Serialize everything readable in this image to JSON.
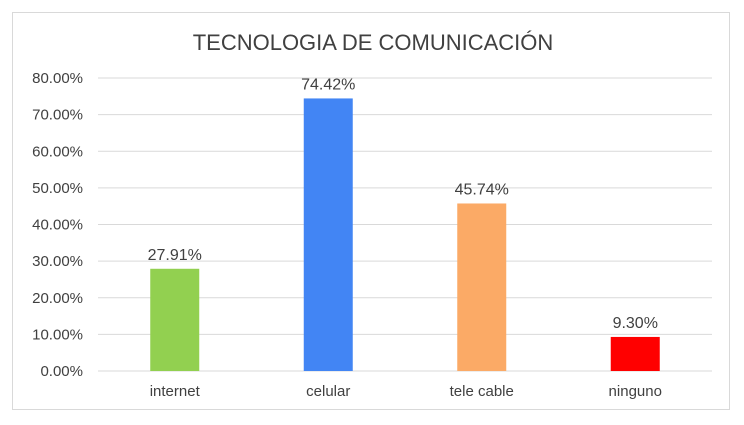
{
  "chart_data": {
    "type": "bar",
    "title": "TECNOLOGIA DE COMUNICACIÓN",
    "categories": [
      "internet",
      "celular",
      "tele cable",
      "ninguno"
    ],
    "values": [
      27.91,
      74.42,
      45.74,
      9.3
    ],
    "value_labels": [
      "27.91%",
      "74.42%",
      "45.74%",
      "9.30%"
    ],
    "colors": [
      "#92d050",
      "#4285f4",
      "#fbaa66",
      "#ff0000"
    ],
    "ylim": [
      0,
      80
    ],
    "yticks": [
      0,
      10,
      20,
      30,
      40,
      50,
      60,
      70,
      80
    ],
    "ytick_labels": [
      "0.00%",
      "10.00%",
      "20.00%",
      "30.00%",
      "40.00%",
      "50.00%",
      "60.00%",
      "70.00%",
      "80.00%"
    ],
    "grid": true,
    "legend": "none",
    "xlabel": "",
    "ylabel": ""
  }
}
